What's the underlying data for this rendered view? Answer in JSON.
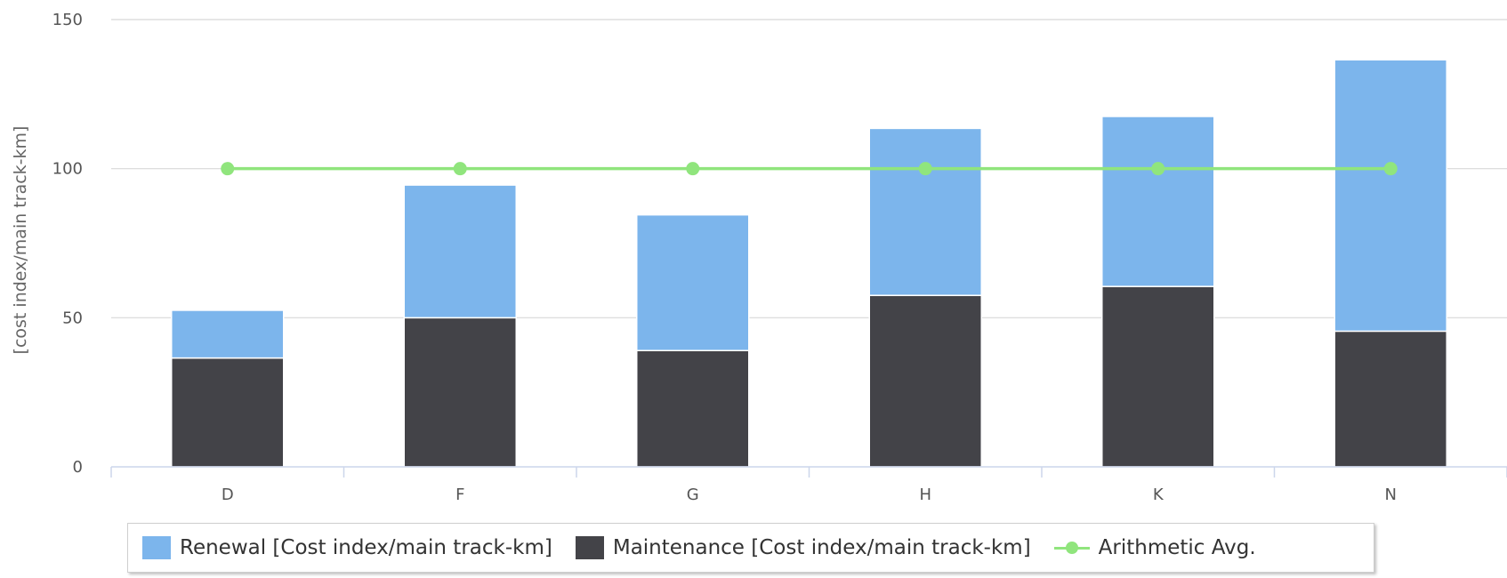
{
  "chart_data": {
    "type": "bar",
    "stacked": true,
    "categories": [
      "D",
      "F",
      "G",
      "H",
      "K",
      "N"
    ],
    "series": [
      {
        "name": "Maintenance [Cost index/main track-km]",
        "type": "bar",
        "color": "#434348",
        "values": [
          36.5,
          50,
          39,
          57.5,
          60.5,
          45.5
        ]
      },
      {
        "name": "Renewal [Cost index/main track-km]",
        "type": "bar",
        "color": "#7cb5ec",
        "values": [
          16,
          44.5,
          45.5,
          56,
          57,
          91
        ]
      },
      {
        "name": "Arithmetic Avg.",
        "type": "line",
        "color": "#90e57d",
        "values": [
          100,
          100,
          100,
          100,
          100,
          100
        ]
      }
    ],
    "ylabel": "[cost index/main track-km]",
    "xlabel": "",
    "title": "",
    "ylim": [
      0,
      150
    ],
    "yticks": [
      0,
      50,
      100,
      150
    ],
    "grid": true,
    "legend_position": "bottom"
  },
  "legend": {
    "renewal": "Renewal [Cost index/main track-km]",
    "maintenance": "Maintenance [Cost index/main track-km]",
    "average": "Arithmetic Avg."
  }
}
